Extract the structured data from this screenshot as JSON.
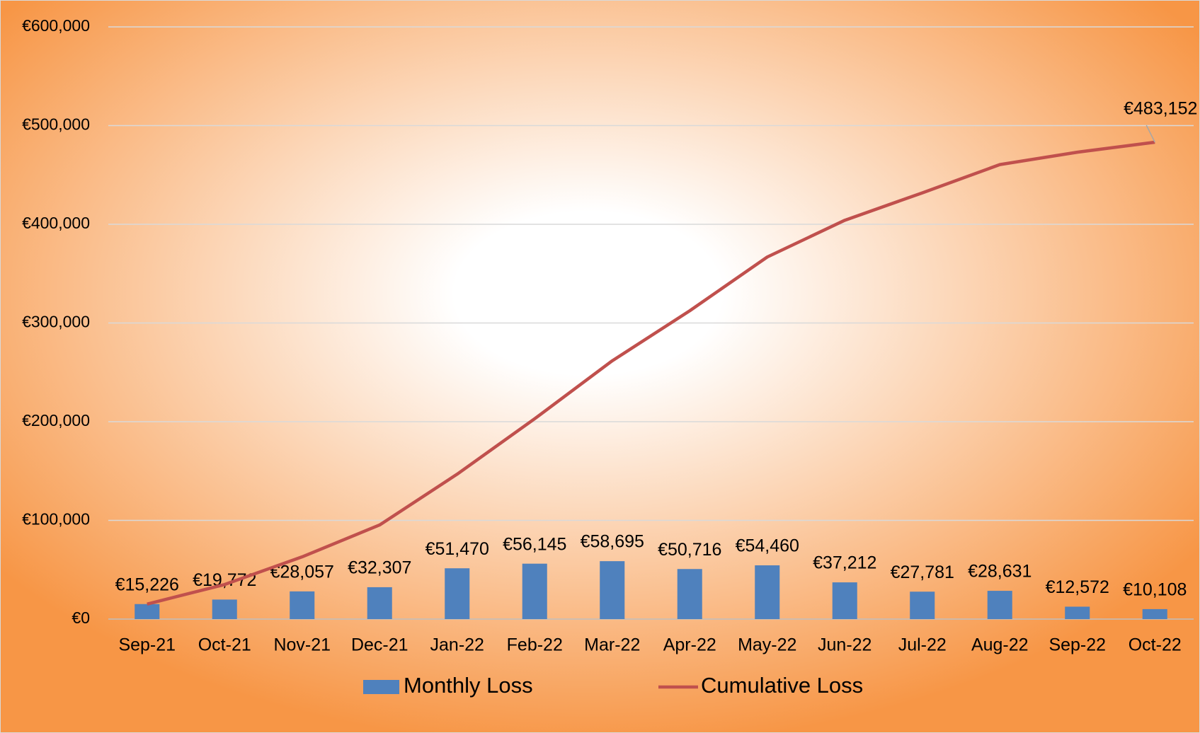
{
  "chart_data": {
    "type": "bar-line",
    "categories": [
      "Sep-21",
      "Oct-21",
      "Nov-21",
      "Dec-21",
      "Jan-22",
      "Feb-22",
      "Mar-22",
      "Apr-22",
      "May-22",
      "Jun-22",
      "Jul-22",
      "Aug-22",
      "Sep-22",
      "Oct-22"
    ],
    "series": [
      {
        "name": "Monthly Loss",
        "type": "bar",
        "color": "#4f81bd",
        "values": [
          15226,
          19772,
          28057,
          32307,
          51470,
          56145,
          58695,
          50716,
          54460,
          37212,
          27781,
          28631,
          12572,
          10108
        ],
        "value_labels": [
          "€15,226",
          "€19,772",
          "€28,057",
          "€32,307",
          "€51,470",
          "€56,145",
          "€58,695",
          "€50,716",
          "€54,460",
          "€37,212",
          "€27,781",
          "€28,631",
          "€12,572",
          "€10,108"
        ]
      },
      {
        "name": "Cumulative Loss",
        "type": "line",
        "color": "#c0504d",
        "values": [
          15226,
          34998,
          63055,
          95362,
          146832,
          202977,
          261672,
          312388,
          366848,
          404060,
          431841,
          460472,
          473044,
          483152
        ],
        "value_labels": [
          null,
          null,
          null,
          null,
          null,
          null,
          null,
          null,
          null,
          null,
          null,
          null,
          null,
          "€483,152"
        ]
      }
    ],
    "ylim": [
      0,
      600000
    ],
    "yticks": [
      {
        "value": 0,
        "label": "€0"
      },
      {
        "value": 100000,
        "label": "€100,000"
      },
      {
        "value": 200000,
        "label": "€200,000"
      },
      {
        "value": 300000,
        "label": "€300,000"
      },
      {
        "value": 400000,
        "label": "€400,000"
      },
      {
        "value": 500000,
        "label": "€500,000"
      },
      {
        "value": 600000,
        "label": "€600,000"
      }
    ],
    "grid": true,
    "legend": "bottom"
  }
}
